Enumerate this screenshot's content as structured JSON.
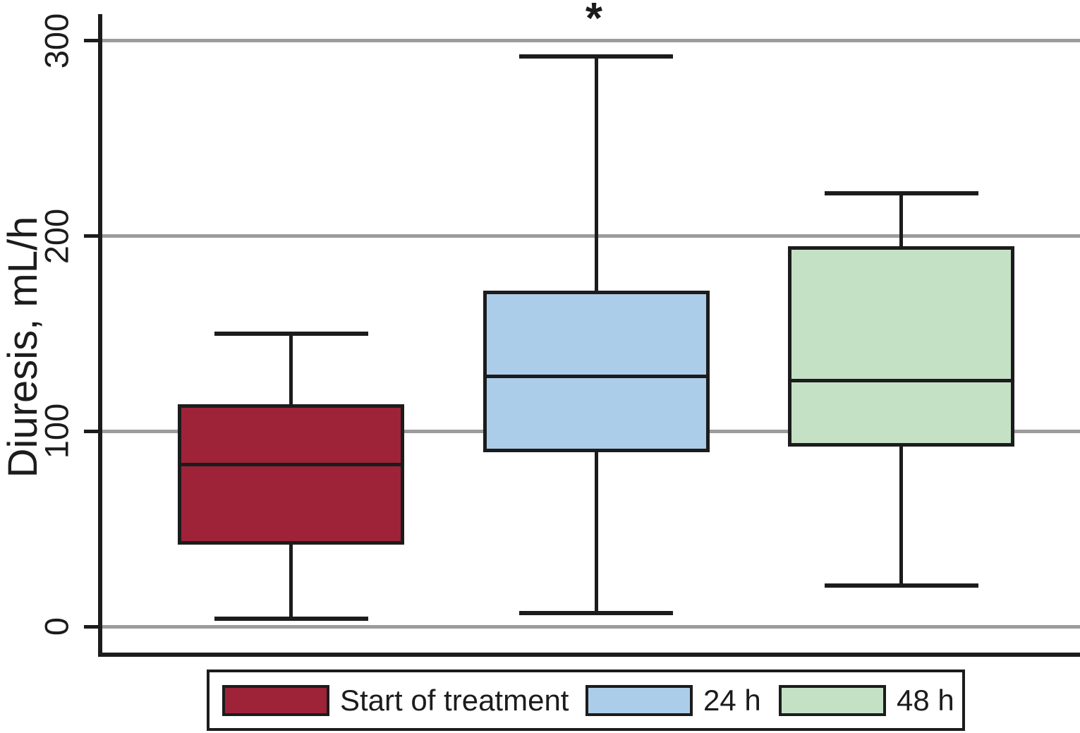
{
  "chart_data": {
    "type": "box",
    "title": "",
    "xlabel": "",
    "ylabel": "Diuresis, mL/h",
    "ylim": [
      0,
      300
    ],
    "yticks": [
      "0",
      "100",
      "200",
      "300"
    ],
    "ytick_values": [
      0,
      100,
      200,
      300
    ],
    "grid": "horizontal gridlines at each y tick",
    "legend_position": "bottom",
    "series": [
      {
        "name": "Start of treatment",
        "color": "#9e2339",
        "min": 4,
        "q1": 43,
        "median": 83,
        "q3": 113,
        "max": 150,
        "annotation": ""
      },
      {
        "name": "24 h",
        "color": "#accde9",
        "min": 7,
        "q1": 90,
        "median": 128,
        "q3": 171,
        "max": 292,
        "annotation": "*"
      },
      {
        "name": "48 h",
        "color": "#c5e1c5",
        "min": 21,
        "q1": 93,
        "median": 126,
        "q3": 194,
        "max": 222,
        "annotation": ""
      }
    ]
  },
  "colors": {
    "axis": "#1c1c1c",
    "grid": "#9c9c9c",
    "text": "#1c1c1c",
    "background": "#ffffff"
  }
}
